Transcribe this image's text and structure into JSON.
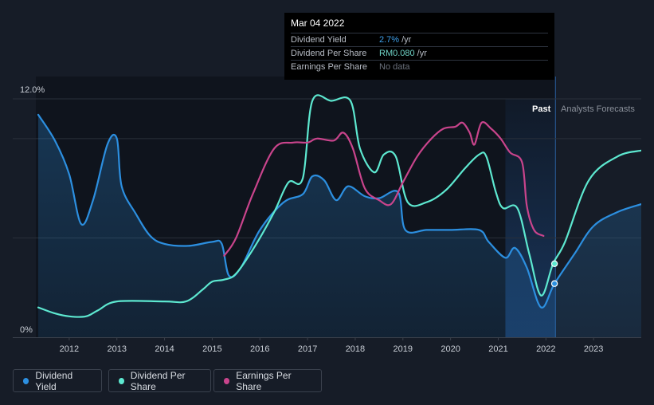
{
  "tooltip": {
    "date": "Mar 04 2022",
    "rows": [
      {
        "label": "Dividend Yield",
        "value": "2.7%",
        "unit": "/yr"
      },
      {
        "label": "Dividend Per Share",
        "value": "RM0.080",
        "unit": "/yr"
      },
      {
        "label": "Earnings Per Share",
        "value": "No data",
        "unit": ""
      }
    ]
  },
  "labels": {
    "past": "Past",
    "forecast": "Analysts Forecasts"
  },
  "legend": [
    {
      "label": "Dividend Yield",
      "color": "#2c8fe0"
    },
    {
      "label": "Dividend Per Share",
      "color": "#5de8d0"
    },
    {
      "label": "Earnings Per Share",
      "color": "#c9448c"
    }
  ],
  "colors": {
    "dividend_yield": "#2c8fe0",
    "dividend_per_share": "#5de8d0",
    "earnings_per_share": "#c9448c",
    "background": "#161c27",
    "past_region": "#0f141d",
    "forecast_highlight": "#1a3b66"
  },
  "chart_data": {
    "type": "line",
    "title": "",
    "xlabel": "",
    "ylabel": "",
    "x_ticks": [
      "2012",
      "2013",
      "2014",
      "2015",
      "2016",
      "2017",
      "2018",
      "2019",
      "2020",
      "2021",
      "2022",
      "2023"
    ],
    "y_ticks": [
      "0%",
      "12.0%"
    ],
    "xlim": [
      2011.3,
      2024.0
    ],
    "ylim": [
      0,
      12.0
    ],
    "past_end": 2022.2,
    "highlight_start": 2021.15,
    "grid": true,
    "legend_position": "bottom-left",
    "series": [
      {
        "name": "Dividend Yield",
        "key": "dividend_yield",
        "fill": true,
        "points": [
          [
            2011.35,
            11.2
          ],
          [
            2011.7,
            9.9
          ],
          [
            2012.0,
            8.2
          ],
          [
            2012.25,
            5.7
          ],
          [
            2012.5,
            6.9
          ],
          [
            2012.8,
            9.7
          ],
          [
            2013.0,
            10.0
          ],
          [
            2013.1,
            7.6
          ],
          [
            2013.4,
            6.2
          ],
          [
            2013.7,
            5.1
          ],
          [
            2014.0,
            4.7
          ],
          [
            2014.5,
            4.6
          ],
          [
            2015.0,
            4.8
          ],
          [
            2015.2,
            4.7
          ],
          [
            2015.35,
            3.1
          ],
          [
            2015.6,
            3.5
          ],
          [
            2016.0,
            5.4
          ],
          [
            2016.5,
            6.8
          ],
          [
            2016.9,
            7.2
          ],
          [
            2017.1,
            8.1
          ],
          [
            2017.35,
            7.9
          ],
          [
            2017.6,
            6.9
          ],
          [
            2017.85,
            7.6
          ],
          [
            2018.2,
            7.1
          ],
          [
            2018.5,
            7.0
          ],
          [
            2018.9,
            7.3
          ],
          [
            2019.05,
            5.4
          ],
          [
            2019.5,
            5.4
          ],
          [
            2020.0,
            5.4
          ],
          [
            2020.6,
            5.4
          ],
          [
            2020.8,
            4.8
          ],
          [
            2021.15,
            4.0
          ],
          [
            2021.35,
            4.5
          ],
          [
            2021.6,
            3.5
          ],
          [
            2021.9,
            1.5
          ],
          [
            2022.18,
            2.7
          ],
          [
            2022.6,
            4.2
          ],
          [
            2023.0,
            5.6
          ],
          [
            2023.5,
            6.3
          ],
          [
            2024.0,
            6.7
          ]
        ]
      },
      {
        "name": "Dividend Per Share",
        "key": "dividend_per_share",
        "fill": false,
        "points": [
          [
            2011.35,
            1.5
          ],
          [
            2011.7,
            1.2
          ],
          [
            2012.0,
            1.05
          ],
          [
            2012.35,
            1.05
          ],
          [
            2012.6,
            1.35
          ],
          [
            2013.0,
            1.8
          ],
          [
            2014.0,
            1.8
          ],
          [
            2014.45,
            1.8
          ],
          [
            2014.8,
            2.4
          ],
          [
            2015.0,
            2.8
          ],
          [
            2015.25,
            2.9
          ],
          [
            2015.5,
            3.2
          ],
          [
            2015.9,
            4.6
          ],
          [
            2016.3,
            6.3
          ],
          [
            2016.6,
            7.8
          ],
          [
            2016.9,
            8.0
          ],
          [
            2017.1,
            11.9
          ],
          [
            2017.5,
            11.9
          ],
          [
            2017.9,
            11.9
          ],
          [
            2018.1,
            9.5
          ],
          [
            2018.4,
            8.3
          ],
          [
            2018.6,
            9.2
          ],
          [
            2018.85,
            9.1
          ],
          [
            2019.1,
            6.8
          ],
          [
            2019.5,
            6.8
          ],
          [
            2019.9,
            7.4
          ],
          [
            2020.3,
            8.5
          ],
          [
            2020.6,
            9.2
          ],
          [
            2020.75,
            9.1
          ],
          [
            2020.95,
            7.3
          ],
          [
            2021.1,
            6.5
          ],
          [
            2021.4,
            6.5
          ],
          [
            2021.65,
            4.2
          ],
          [
            2021.9,
            2.1
          ],
          [
            2022.15,
            3.7
          ],
          [
            2022.4,
            4.8
          ],
          [
            2022.9,
            7.9
          ],
          [
            2023.5,
            9.1
          ],
          [
            2024.0,
            9.4
          ]
        ]
      },
      {
        "name": "Earnings Per Share",
        "key": "earnings_per_share",
        "fill": false,
        "points": [
          [
            2015.25,
            4.1
          ],
          [
            2015.5,
            5.0
          ],
          [
            2015.85,
            7.2
          ],
          [
            2016.3,
            9.5
          ],
          [
            2016.7,
            9.8
          ],
          [
            2017.0,
            9.8
          ],
          [
            2017.2,
            10.0
          ],
          [
            2017.55,
            9.9
          ],
          [
            2017.75,
            10.3
          ],
          [
            2017.95,
            9.5
          ],
          [
            2018.2,
            7.5
          ],
          [
            2018.5,
            6.9
          ],
          [
            2018.75,
            6.7
          ],
          [
            2019.0,
            7.8
          ],
          [
            2019.3,
            9.1
          ],
          [
            2019.6,
            10.0
          ],
          [
            2019.85,
            10.5
          ],
          [
            2020.1,
            10.6
          ],
          [
            2020.25,
            10.8
          ],
          [
            2020.4,
            10.3
          ],
          [
            2020.5,
            9.7
          ],
          [
            2020.65,
            10.8
          ],
          [
            2020.85,
            10.5
          ],
          [
            2021.05,
            10.0
          ],
          [
            2021.25,
            9.3
          ],
          [
            2021.5,
            8.8
          ],
          [
            2021.6,
            6.6
          ],
          [
            2021.75,
            5.4
          ],
          [
            2021.95,
            5.1
          ]
        ]
      }
    ],
    "markers": [
      {
        "series": "dividend_per_share",
        "x": 2022.18,
        "y": 3.7
      },
      {
        "series": "dividend_yield",
        "x": 2022.18,
        "y": 2.7
      }
    ]
  }
}
